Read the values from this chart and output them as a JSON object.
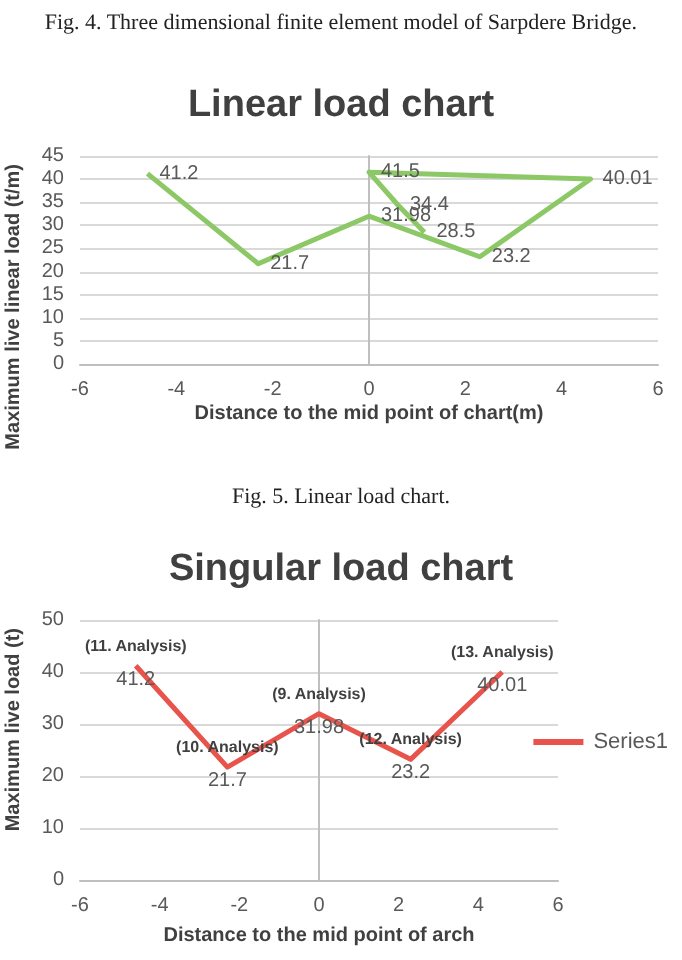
{
  "chart_data": [
    {
      "type": "line",
      "title": "Linear load chart",
      "xlabel": "Distance to the mid point of chart(m)",
      "ylabel": "Maximum live linear load (t/m)",
      "annotations": [
        "Fig. 4. Three dimensional finite element model of Sarpdere Bridge.",
        "Fig. 5. Linear load chart."
      ],
      "x": [
        -4.6,
        -2.3,
        0,
        2.3,
        4.6,
        0,
        0.6,
        1.15
      ],
      "values": [
        41.2,
        21.7,
        31.98,
        23.2,
        40.01,
        41.5,
        34.4,
        28.5
      ],
      "color": "#8cc866",
      "xlim": [
        -6,
        6
      ],
      "xticks": [
        -6,
        -4,
        -2,
        0,
        2,
        4,
        6
      ],
      "ylim": [
        0,
        45
      ],
      "yticks": [
        0,
        5,
        10,
        15,
        20,
        25,
        30,
        35,
        40,
        45
      ],
      "grid": "y",
      "data_labels": true,
      "marker": "none"
    },
    {
      "type": "line",
      "title": "Singular load chart",
      "xlabel": "Distance to the mid point of arch",
      "ylabel": "Maximum live load (t)",
      "x": [
        -4.6,
        -2.3,
        0,
        2.3,
        4.6
      ],
      "series": [
        {
          "name": "Series1",
          "color": "#e8544c",
          "values": [
            41.2,
            21.7,
            31.98,
            23.2,
            40.01
          ]
        }
      ],
      "annotations": [
        {
          "text": "(11. Analysis)",
          "x": -4.6,
          "y": 41.2
        },
        {
          "text": "(10. Analysis)",
          "x": -2.3,
          "y": 21.7
        },
        {
          "text": "(9. Analysis)",
          "x": 0,
          "y": 31.98
        },
        {
          "text": "(12. Analysis)",
          "x": 2.3,
          "y": 23.2
        },
        {
          "text": "(13. Analysis)",
          "x": 4.6,
          "y": 40.01
        }
      ],
      "xlim": [
        -6,
        6
      ],
      "xticks": [
        -6,
        -4,
        -2,
        0,
        2,
        4,
        6
      ],
      "ylim": [
        0,
        50
      ],
      "yticks": [
        0,
        10,
        20,
        30,
        40,
        50
      ],
      "grid": "y",
      "data_labels": true,
      "marker": "none",
      "legend": "right"
    }
  ]
}
